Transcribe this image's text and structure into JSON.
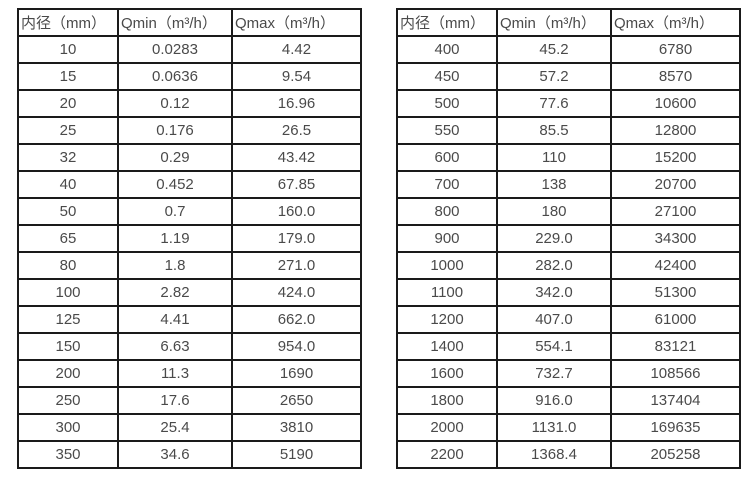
{
  "tables": [
    {
      "name": "flow-table-small-diameters",
      "headers": [
        "内径（mm）",
        "Qmin（m³/h）",
        "Qmax（m³/h）"
      ],
      "rows": [
        [
          "10",
          "0.0283",
          "4.42"
        ],
        [
          "15",
          "0.0636",
          "9.54"
        ],
        [
          "20",
          "0.12",
          "16.96"
        ],
        [
          "25",
          "0.176",
          "26.5"
        ],
        [
          "32",
          "0.29",
          "43.42"
        ],
        [
          "40",
          "0.452",
          "67.85"
        ],
        [
          "50",
          "0.7",
          "160.0"
        ],
        [
          "65",
          "1.19",
          "179.0"
        ],
        [
          "80",
          "1.8",
          "271.0"
        ],
        [
          "100",
          "2.82",
          "424.0"
        ],
        [
          "125",
          "4.41",
          "662.0"
        ],
        [
          "150",
          "6.63",
          "954.0"
        ],
        [
          "200",
          "11.3",
          "1690"
        ],
        [
          "250",
          "17.6",
          "2650"
        ],
        [
          "300",
          "25.4",
          "3810"
        ],
        [
          "350",
          "34.6",
          "5190"
        ]
      ]
    },
    {
      "name": "flow-table-large-diameters",
      "headers": [
        "内径（mm）",
        "Qmin（m³/h）",
        "Qmax（m³/h）"
      ],
      "rows": [
        [
          "400",
          "45.2",
          "6780"
        ],
        [
          "450",
          "57.2",
          "8570"
        ],
        [
          "500",
          "77.6",
          "10600"
        ],
        [
          "550",
          "85.5",
          "12800"
        ],
        [
          "600",
          "110",
          "15200"
        ],
        [
          "700",
          "138",
          "20700"
        ],
        [
          "800",
          "180",
          "27100"
        ],
        [
          "900",
          "229.0",
          "34300"
        ],
        [
          "1000",
          "282.0",
          "42400"
        ],
        [
          "1100",
          "342.0",
          "51300"
        ],
        [
          "1200",
          "407.0",
          "61000"
        ],
        [
          "1400",
          "554.1",
          "83121"
        ],
        [
          "1600",
          "732.7",
          "108566"
        ],
        [
          "1800",
          "916.0",
          "137404"
        ],
        [
          "2000",
          "1131.0",
          "169635"
        ],
        [
          "2200",
          "1368.4",
          "205258"
        ]
      ]
    }
  ],
  "colors": {
    "border": "#1a1a1a",
    "text": "#4a4a4a",
    "background": "#ffffff"
  }
}
